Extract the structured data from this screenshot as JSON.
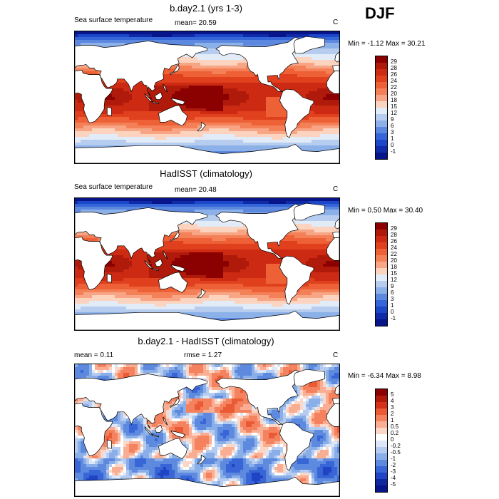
{
  "season": "DJF",
  "panels": [
    {
      "title": "b.day2.1 (yrs 1-3)",
      "left_label": "Sea surface temperature",
      "mid_label": "mean=  20.59",
      "right_label": "C",
      "minmax": "Min =  -1.12 Max =  30.21",
      "map_kind": "sst",
      "colorbar": {
        "labels": [
          "29",
          "28",
          "26",
          "24",
          "22",
          "20",
          "18",
          "15",
          "12",
          "9",
          "6",
          "3",
          "1",
          "0",
          "-1"
        ],
        "colors": [
          "#8b0000",
          "#b01a0a",
          "#cc2a12",
          "#e0401e",
          "#ee6035",
          "#f48058",
          "#f8a585",
          "#fbd3bf",
          "#e2ebf8",
          "#b7cdef",
          "#8cb0e8",
          "#5c88e0",
          "#3566d9",
          "#1d47c9",
          "#0f2ba8",
          "#08158a"
        ]
      }
    },
    {
      "title": "HadISST (climatology)",
      "left_label": "Sea surface temperature",
      "mid_label": "mean=  20.48",
      "right_label": "C",
      "minmax": "Min =   0.50 Max =  30.40",
      "map_kind": "sst",
      "colorbar": {
        "labels": [
          "29",
          "28",
          "26",
          "24",
          "22",
          "20",
          "18",
          "15",
          "12",
          "9",
          "6",
          "3",
          "1",
          "0",
          "-1"
        ],
        "colors": [
          "#8b0000",
          "#b01a0a",
          "#cc2a12",
          "#e0401e",
          "#ee6035",
          "#f48058",
          "#f8a585",
          "#fbd3bf",
          "#e2ebf8",
          "#b7cdef",
          "#8cb0e8",
          "#5c88e0",
          "#3566d9",
          "#1d47c9",
          "#0f2ba8",
          "#08158a"
        ]
      }
    },
    {
      "title": "b.day2.1 - HadISST (climatology)",
      "left_label": "mean =   0.11",
      "mid_label": "rmse =   1.27",
      "right_label": "C",
      "minmax": "Min =  -6.34 Max =   8.98",
      "map_kind": "diff",
      "colorbar": {
        "labels": [
          "5",
          "4",
          "3",
          "2",
          "1",
          "0.5",
          "0.2",
          "0",
          "-0.2",
          "-0.5",
          "-1",
          "-2",
          "-3",
          "-4",
          "-5"
        ],
        "colors": [
          "#8b0000",
          "#b01a0a",
          "#d5311a",
          "#ea5a35",
          "#f4825f",
          "#f9ad92",
          "#fcd6c6",
          "#ffffff",
          "#dce7f7",
          "#b5cbef",
          "#8aaee7",
          "#5d8ade",
          "#3866d6",
          "#1f45c4",
          "#10289f",
          "#08158a"
        ]
      }
    }
  ]
}
